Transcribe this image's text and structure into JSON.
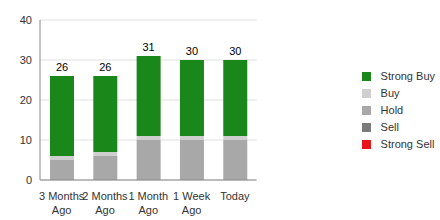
{
  "chart_data": {
    "type": "bar",
    "stacked": true,
    "categories": [
      "3 Months Ago",
      "2 Months Ago",
      "1 Month Ago",
      "1 Week Ago",
      "Today"
    ],
    "series": [
      {
        "name": "Strong Buy",
        "color": "#1a871a",
        "values": [
          20,
          19,
          20,
          19,
          19
        ]
      },
      {
        "name": "Buy",
        "color": "#cfcfcf",
        "values": [
          1,
          1,
          1,
          1,
          1
        ]
      },
      {
        "name": "Hold",
        "color": "#a8a8a8",
        "values": [
          5,
          6,
          10,
          10,
          10
        ]
      },
      {
        "name": "Sell",
        "color": "#7a7a7a",
        "values": [
          0,
          0,
          0,
          0,
          0
        ]
      },
      {
        "name": "Strong Sell",
        "color": "#e8131b",
        "values": [
          0,
          0,
          0,
          0,
          0
        ]
      }
    ],
    "totals": [
      26,
      26,
      31,
      30,
      30
    ],
    "ylim": [
      0,
      40
    ],
    "yticks": [
      0,
      10,
      20,
      30,
      40
    ],
    "grid": true,
    "legend": "right"
  }
}
